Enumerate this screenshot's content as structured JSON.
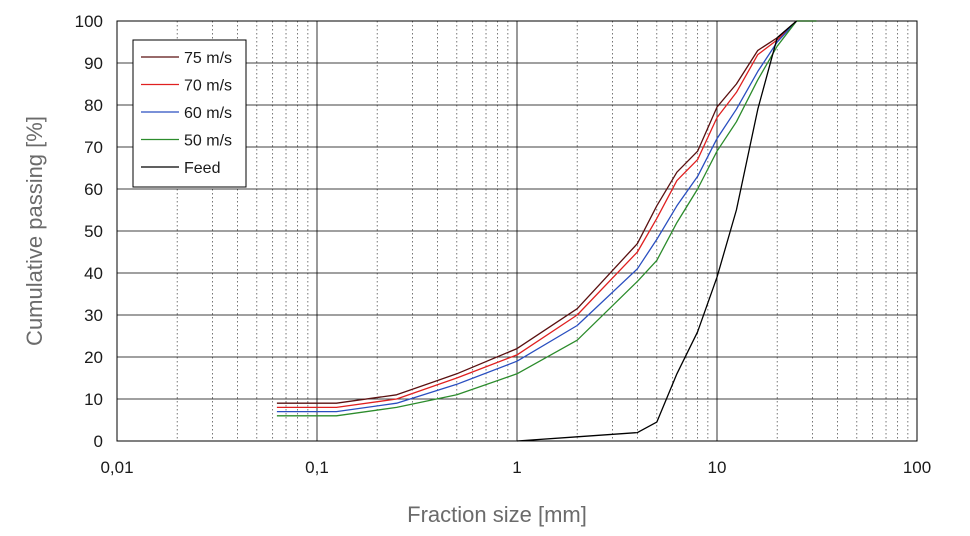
{
  "chart_data": {
    "type": "line",
    "xlabel": "Fraction size  [mm]",
    "ylabel": "Cumulative passing  [%]",
    "x_scale": "log",
    "xlim": [
      0.01,
      100
    ],
    "ylim": [
      0,
      100
    ],
    "x_ticks": [
      {
        "value": 0.01,
        "label": "0,01"
      },
      {
        "value": 0.1,
        "label": "0,1"
      },
      {
        "value": 1,
        "label": "1"
      },
      {
        "value": 10,
        "label": "10"
      },
      {
        "value": 100,
        "label": "100"
      }
    ],
    "y_ticks": [
      {
        "value": 0,
        "label": "0"
      },
      {
        "value": 10,
        "label": "10"
      },
      {
        "value": 20,
        "label": "20"
      },
      {
        "value": 30,
        "label": "30"
      },
      {
        "value": 40,
        "label": "40"
      },
      {
        "value": 50,
        "label": "50"
      },
      {
        "value": 60,
        "label": "60"
      },
      {
        "value": 70,
        "label": "70"
      },
      {
        "value": 80,
        "label": "80"
      },
      {
        "value": 90,
        "label": "90"
      },
      {
        "value": 100,
        "label": "100"
      }
    ],
    "grid": {
      "major": "solid",
      "minor_x": "dotted"
    },
    "legend_position": "top-left",
    "series": [
      {
        "name": "75 m/s",
        "color": "#5a1010",
        "x": [
          0.063,
          0.125,
          0.25,
          0.5,
          1,
          2,
          4,
          5,
          6.3,
          8,
          10,
          12.5,
          16,
          20,
          25,
          31.5
        ],
        "y": [
          9,
          9,
          11,
          16,
          22,
          31.5,
          47,
          56,
          64,
          69,
          79.5,
          85,
          93,
          96,
          100,
          100
        ]
      },
      {
        "name": "70 m/s",
        "color": "#e02020",
        "x": [
          0.063,
          0.125,
          0.25,
          0.5,
          1,
          2,
          4,
          5,
          6.3,
          8,
          10,
          12.5,
          16,
          20,
          25,
          31.5
        ],
        "y": [
          8,
          8,
          10,
          15,
          20.5,
          30,
          45,
          53,
          62,
          67,
          77,
          83,
          92,
          95.5,
          100,
          100
        ]
      },
      {
        "name": "60 m/s",
        "color": "#2a4fc0",
        "x": [
          0.063,
          0.125,
          0.25,
          0.5,
          1,
          2,
          4,
          5,
          6.3,
          8,
          10,
          12.5,
          16,
          20,
          25,
          31.5
        ],
        "y": [
          7,
          7,
          9,
          13.5,
          19,
          27.5,
          41,
          48,
          56,
          63,
          72,
          79,
          88,
          95,
          100,
          100
        ]
      },
      {
        "name": "50 m/s",
        "color": "#2c8c2c",
        "x": [
          0.063,
          0.125,
          0.25,
          0.5,
          1,
          2,
          4,
          5,
          6.3,
          8,
          10,
          12.5,
          16,
          20,
          25,
          31.5
        ],
        "y": [
          6,
          6,
          8,
          11,
          16,
          24,
          38,
          43,
          52,
          60,
          69,
          76,
          86,
          94,
          100,
          100
        ]
      },
      {
        "name": "Feed",
        "color": "#000000",
        "x": [
          1,
          2,
          4,
          5,
          6.3,
          8,
          10,
          12.5,
          16,
          20,
          25
        ],
        "y": [
          0,
          1,
          2,
          4.5,
          16,
          26,
          39,
          55,
          79,
          96,
          100
        ]
      }
    ]
  }
}
